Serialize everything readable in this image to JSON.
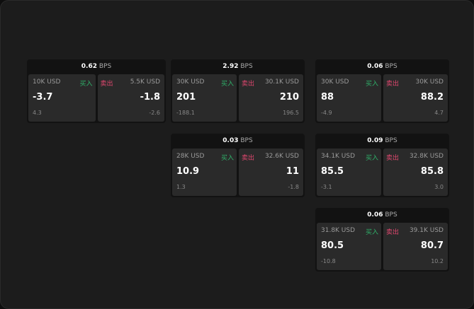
{
  "labels": {
    "buy": "买入",
    "sell": "卖出",
    "unit": "BPS"
  },
  "cards": [
    {
      "spread": "0.62",
      "buy": {
        "size": "10K USD",
        "price": "-3.7",
        "delta": "4.3"
      },
      "sell": {
        "size": "5.5K USD",
        "price": "-1.8",
        "delta": "-2.6"
      }
    },
    {
      "spread": "2.92",
      "buy": {
        "size": "30K USD",
        "price": "201",
        "delta": "-188.1"
      },
      "sell": {
        "size": "30.1K USD",
        "price": "210",
        "delta": "196.5"
      }
    },
    {
      "spread": "0.06",
      "buy": {
        "size": "30K USD",
        "price": "88",
        "delta": "-4.9"
      },
      "sell": {
        "size": "30K USD",
        "price": "88.2",
        "delta": "4.7"
      }
    },
    {
      "spread": "0.03",
      "buy": {
        "size": "28K USD",
        "price": "10.9",
        "delta": "1.3"
      },
      "sell": {
        "size": "32.6K USD",
        "price": "11",
        "delta": "-1.8"
      }
    },
    {
      "spread": "0.09",
      "buy": {
        "size": "34.1K USD",
        "price": "85.5",
        "delta": "-3.1"
      },
      "sell": {
        "size": "32.8K USD",
        "price": "85.8",
        "delta": "3.0"
      }
    },
    {
      "spread": "0.06",
      "buy": {
        "size": "31.8K USD",
        "price": "80.5",
        "delta": "-10.8"
      },
      "sell": {
        "size": "39.1K USD",
        "price": "80.7",
        "delta": "10.2"
      }
    }
  ]
}
